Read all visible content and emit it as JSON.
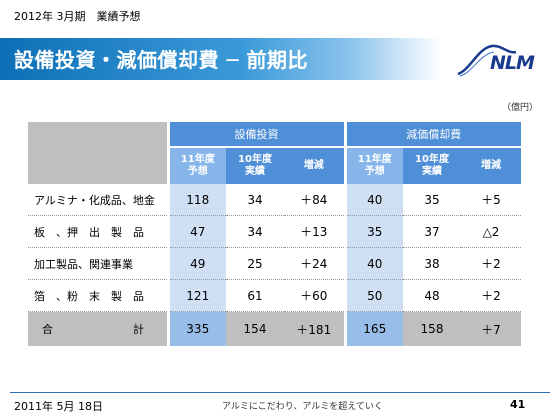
{
  "subtitle": "2012年 3月期　業績予想",
  "title": "設備投資・減価償却費 ─ 前期比",
  "logo_text": "NLM",
  "unit": "（億円）",
  "table": {
    "groups": [
      "設備投資",
      "減価償却費"
    ],
    "sub_headers": {
      "forecast": [
        "11年度",
        "予想"
      ],
      "actual": [
        "10年度",
        "実績"
      ],
      "change": "増減"
    },
    "rows": [
      {
        "label": "アルミナ・化成品、地金",
        "capex_forecast": "118",
        "capex_actual": "34",
        "capex_change": "＋84",
        "dep_forecast": "40",
        "dep_actual": "35",
        "dep_change": "＋5"
      },
      {
        "label": "板　、押　出　製　品",
        "capex_forecast": "47",
        "capex_actual": "34",
        "capex_change": "＋13",
        "dep_forecast": "35",
        "dep_actual": "37",
        "dep_change": "△2"
      },
      {
        "label": "加工製品、関連事業",
        "capex_forecast": "49",
        "capex_actual": "25",
        "capex_change": "＋24",
        "dep_forecast": "40",
        "dep_actual": "38",
        "dep_change": "＋2"
      },
      {
        "label": "箔　、粉　末　製　品",
        "capex_forecast": "121",
        "capex_actual": "61",
        "capex_change": "＋60",
        "dep_forecast": "50",
        "dep_actual": "48",
        "dep_change": "＋2"
      }
    ],
    "total": {
      "label_left": "合",
      "label_right": "計",
      "capex_forecast": "335",
      "capex_actual": "154",
      "capex_change": "＋181",
      "dep_forecast": "165",
      "dep_actual": "158",
      "dep_change": "＋7"
    }
  },
  "footer": {
    "date": "2011年 5月 18日",
    "slogan": "アルミにこだわり、アルミを超えていく",
    "page": "41"
  },
  "colors": {
    "accent": "#0e6fb6",
    "header": "#4f8fd8",
    "header_light": "#86b5ea",
    "cell_blue": "#cfe0f5",
    "gray": "#bfbfbf"
  }
}
